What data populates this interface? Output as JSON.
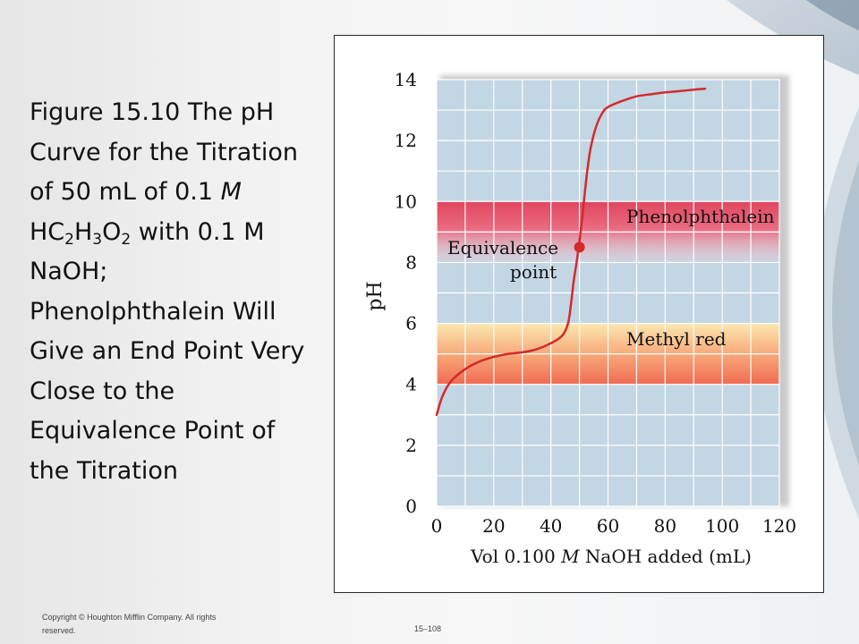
{
  "slide": {
    "title_parts": {
      "t1": "Figure 15.10   The pH Curve for the Titration of 50 mL of 0.1 ",
      "t2": "M",
      "t3": " HC",
      "s1": "2",
      "t4": "H",
      "s2": "3",
      "t5": "O",
      "s3": "2",
      "t6": " with 0.1 M NaOH; Phenolphthalein Will Give an End Point Very Close to the Equivalence Point of the Titration"
    },
    "copyright": "Copyright © Houghton Mifflin Company. All rights reserved.",
    "slide_number": "15–108"
  },
  "colors": {
    "plot_background": "#c3d6e4",
    "gridline": "#ffffff",
    "curve": "#d42a2a",
    "phenolphthalein_band": "#e2566e",
    "methyl_red_band_top": "#fbe3a8",
    "methyl_red_band_bottom": "#f27a62"
  },
  "chart_data": {
    "type": "line",
    "xlabel_parts": {
      "pre": "Vol 0.100 ",
      "italic": "M",
      "post": " NaOH added (mL)"
    },
    "ylabel": "pH",
    "xlim": [
      0,
      120
    ],
    "ylim": [
      0,
      14
    ],
    "x_ticks": [
      "0",
      "20",
      "40",
      "60",
      "80",
      "100",
      "120"
    ],
    "y_ticks": [
      "0",
      "2",
      "4",
      "6",
      "8",
      "10",
      "12",
      "14"
    ],
    "grid": true,
    "series": [
      {
        "x": [
          0,
          2,
          5,
          10,
          15,
          20,
          25,
          30,
          35,
          40,
          44,
          46,
          47,
          48,
          49,
          50,
          51,
          52,
          53,
          54,
          56,
          58,
          60,
          65,
          70,
          75,
          80,
          85,
          90,
          94
        ],
        "y": [
          3.0,
          3.6,
          4.1,
          4.5,
          4.75,
          4.9,
          5.0,
          5.05,
          5.15,
          5.35,
          5.6,
          6.0,
          6.6,
          7.4,
          8.0,
          8.7,
          9.5,
          10.4,
          11.2,
          11.8,
          12.5,
          12.9,
          13.1,
          13.3,
          13.45,
          13.52,
          13.58,
          13.62,
          13.67,
          13.7
        ]
      }
    ],
    "bands": [
      {
        "label": "Phenolphthalein",
        "y_from": 8,
        "y_to": 10
      },
      {
        "label": "Methyl red",
        "y_from": 4,
        "y_to": 6
      }
    ],
    "annotation": {
      "line1": "Equivalence",
      "line2": "point",
      "x": 50,
      "y": 8.5
    }
  }
}
